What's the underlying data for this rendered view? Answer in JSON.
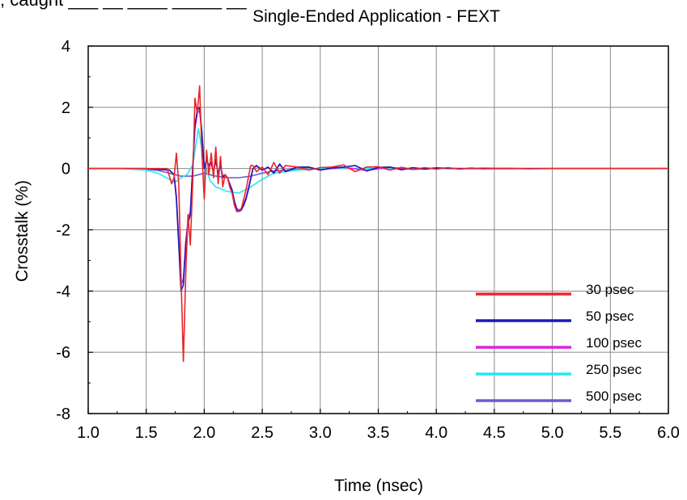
{
  "cropped_header": ", caught ___ __ ____ _____ __",
  "chart_data": {
    "type": "line",
    "title": "Single-Ended Application - FEXT",
    "xlabel": "Time (nsec)",
    "ylabel": "Crosstalk (%)",
    "xlim": [
      1.0,
      6.0
    ],
    "ylim": [
      -8,
      4
    ],
    "xticks": [
      "1.0",
      "1.5",
      "2.0",
      "2.5",
      "3.0",
      "3.5",
      "4.0",
      "4.5",
      "5.0",
      "5.5",
      "6.0"
    ],
    "yticks": [
      "4",
      "2",
      "0",
      "-2",
      "-4",
      "-6",
      "-8"
    ],
    "grid": true,
    "legend_position": "bottom-right",
    "series": [
      {
        "name": "30 psec",
        "color": "#e8262a",
        "x": [
          1.0,
          1.5,
          1.68,
          1.72,
          1.74,
          1.76,
          1.78,
          1.8,
          1.82,
          1.84,
          1.86,
          1.88,
          1.9,
          1.92,
          1.94,
          1.96,
          1.98,
          2.0,
          2.02,
          2.04,
          2.06,
          2.08,
          2.1,
          2.12,
          2.14,
          2.16,
          2.18,
          2.2,
          2.22,
          2.24,
          2.26,
          2.28,
          2.3,
          2.32,
          2.34,
          2.36,
          2.38,
          2.4,
          2.42,
          2.45,
          2.5,
          2.55,
          2.6,
          2.65,
          2.7,
          2.8,
          2.9,
          3.0,
          3.1,
          3.2,
          3.3,
          3.4,
          3.5,
          3.6,
          3.7,
          3.8,
          3.9,
          4.0,
          4.1,
          4.2,
          4.3,
          4.4,
          4.6,
          4.8,
          5.0,
          5.5,
          6.0
        ],
        "y": [
          0,
          0,
          0,
          -0.5,
          -0.3,
          0.5,
          -0.5,
          -3.5,
          -6.3,
          -3.5,
          -1.5,
          -2.5,
          -0.5,
          2.3,
          1.8,
          2.7,
          0.5,
          -1.0,
          0.6,
          -0.2,
          0.5,
          -0.3,
          0.7,
          -0.5,
          0.4,
          -0.6,
          -0.2,
          -0.3,
          -0.6,
          -0.8,
          -1.2,
          -1.4,
          -1.4,
          -1.3,
          -1.0,
          -0.7,
          -0.3,
          0.1,
          0.1,
          -0.1,
          0.05,
          -0.2,
          0.2,
          -0.15,
          0.1,
          0.05,
          -0.05,
          0.03,
          0.05,
          0.12,
          -0.1,
          0.05,
          0.06,
          -0.05,
          0.04,
          -0.03,
          0.03,
          -0.02,
          0.03,
          -0.02,
          0.02,
          -0.01,
          0.01,
          -0.01,
          0,
          0,
          0
        ]
      },
      {
        "name": "50 psec",
        "color": "#1a1ab4",
        "x": [
          1.0,
          1.5,
          1.7,
          1.74,
          1.76,
          1.78,
          1.8,
          1.82,
          1.84,
          1.86,
          1.88,
          1.9,
          1.92,
          1.94,
          1.96,
          1.98,
          2.0,
          2.02,
          2.04,
          2.06,
          2.08,
          2.1,
          2.12,
          2.14,
          2.16,
          2.18,
          2.2,
          2.22,
          2.24,
          2.26,
          2.28,
          2.3,
          2.32,
          2.34,
          2.36,
          2.38,
          2.4,
          2.42,
          2.45,
          2.5,
          2.55,
          2.6,
          2.65,
          2.7,
          2.8,
          2.9,
          3.0,
          3.1,
          3.2,
          3.3,
          3.4,
          3.5,
          3.6,
          3.7,
          3.8,
          3.9,
          4.0,
          4.2,
          4.4,
          4.6,
          5.0,
          5.5,
          6.0
        ],
        "y": [
          0,
          0,
          -0.05,
          -0.2,
          -1.0,
          -2.5,
          -4.0,
          -3.8,
          -2.5,
          -1.8,
          -1.5,
          0.0,
          1.4,
          1.9,
          2.0,
          1.2,
          0.0,
          0.3,
          0.1,
          0.2,
          -0.1,
          0.3,
          -0.2,
          0.1,
          -0.3,
          -0.2,
          -0.3,
          -0.5,
          -0.7,
          -1.1,
          -1.35,
          -1.4,
          -1.35,
          -1.2,
          -1.0,
          -0.7,
          -0.35,
          0.0,
          0.1,
          -0.05,
          0.05,
          -0.15,
          0.15,
          -0.1,
          0.05,
          0.05,
          -0.05,
          0.02,
          0.05,
          0.1,
          -0.08,
          0.04,
          0.05,
          -0.04,
          0.03,
          -0.02,
          0.02,
          -0.01,
          0.01,
          0,
          0,
          0,
          0
        ]
      },
      {
        "name": "100 psec",
        "color": "#e020e0",
        "x": [
          1.0,
          1.5,
          1.7,
          1.74,
          1.76,
          1.78,
          1.8,
          1.82,
          1.84,
          1.86,
          1.88,
          1.9,
          1.92,
          1.94,
          1.96,
          1.98,
          2.0,
          2.02,
          2.04,
          2.06,
          2.08,
          2.1,
          2.12,
          2.14,
          2.16,
          2.18,
          2.2,
          2.22,
          2.24,
          2.26,
          2.28,
          2.3,
          2.32,
          2.34,
          2.36,
          2.38,
          2.4,
          2.42,
          2.45,
          2.5,
          2.55,
          2.6,
          2.65,
          2.7,
          2.8,
          2.9,
          3.0,
          3.2,
          3.4,
          3.6,
          3.8,
          4.0,
          4.4,
          5.0,
          6.0
        ],
        "y": [
          0,
          0,
          -0.05,
          -0.2,
          -0.9,
          -2.3,
          -3.8,
          -3.6,
          -2.4,
          -1.7,
          -1.4,
          0.0,
          1.3,
          1.8,
          1.9,
          1.1,
          0.0,
          0.25,
          0.1,
          0.15,
          -0.1,
          0.25,
          -0.15,
          0.1,
          -0.25,
          -0.2,
          -0.3,
          -0.5,
          -0.7,
          -1.05,
          -1.3,
          -1.35,
          -1.3,
          -1.15,
          -0.95,
          -0.65,
          -0.3,
          0.0,
          0.08,
          -0.05,
          0.04,
          -0.12,
          0.12,
          -0.08,
          0.04,
          0.04,
          -0.04,
          0.04,
          -0.06,
          0.04,
          -0.03,
          0.02,
          -0.01,
          0,
          0
        ]
      },
      {
        "name": "250 psec",
        "color": "#22e8f0",
        "x": [
          1.0,
          1.3,
          1.5,
          1.6,
          1.7,
          1.75,
          1.8,
          1.85,
          1.9,
          1.95,
          2.0,
          2.05,
          2.1,
          2.2,
          2.3,
          2.4,
          2.5,
          2.6,
          2.8,
          3.0,
          3.5,
          4.0,
          5.0,
          6.0
        ],
        "y": [
          0,
          0,
          -0.05,
          -0.15,
          -0.35,
          -0.45,
          -0.3,
          -0.2,
          0.1,
          1.3,
          0.2,
          -0.4,
          -0.6,
          -0.75,
          -0.8,
          -0.6,
          -0.35,
          -0.15,
          -0.05,
          0,
          0,
          0,
          0,
          0
        ]
      },
      {
        "name": "500 psec",
        "color": "#6a5ad0",
        "x": [
          1.0,
          1.3,
          1.5,
          1.6,
          1.7,
          1.75,
          1.8,
          1.85,
          1.9,
          1.95,
          2.0,
          2.05,
          2.1,
          2.2,
          2.3,
          2.4,
          2.5,
          2.6,
          2.8,
          3.0,
          3.5,
          4.0,
          5.0,
          6.0
        ],
        "y": [
          0,
          0,
          -0.02,
          -0.06,
          -0.15,
          -0.2,
          -0.25,
          -0.25,
          -0.25,
          -0.2,
          -0.15,
          -0.2,
          -0.25,
          -0.3,
          -0.3,
          -0.25,
          -0.15,
          -0.08,
          -0.03,
          0,
          0,
          0,
          0,
          0
        ]
      }
    ]
  }
}
